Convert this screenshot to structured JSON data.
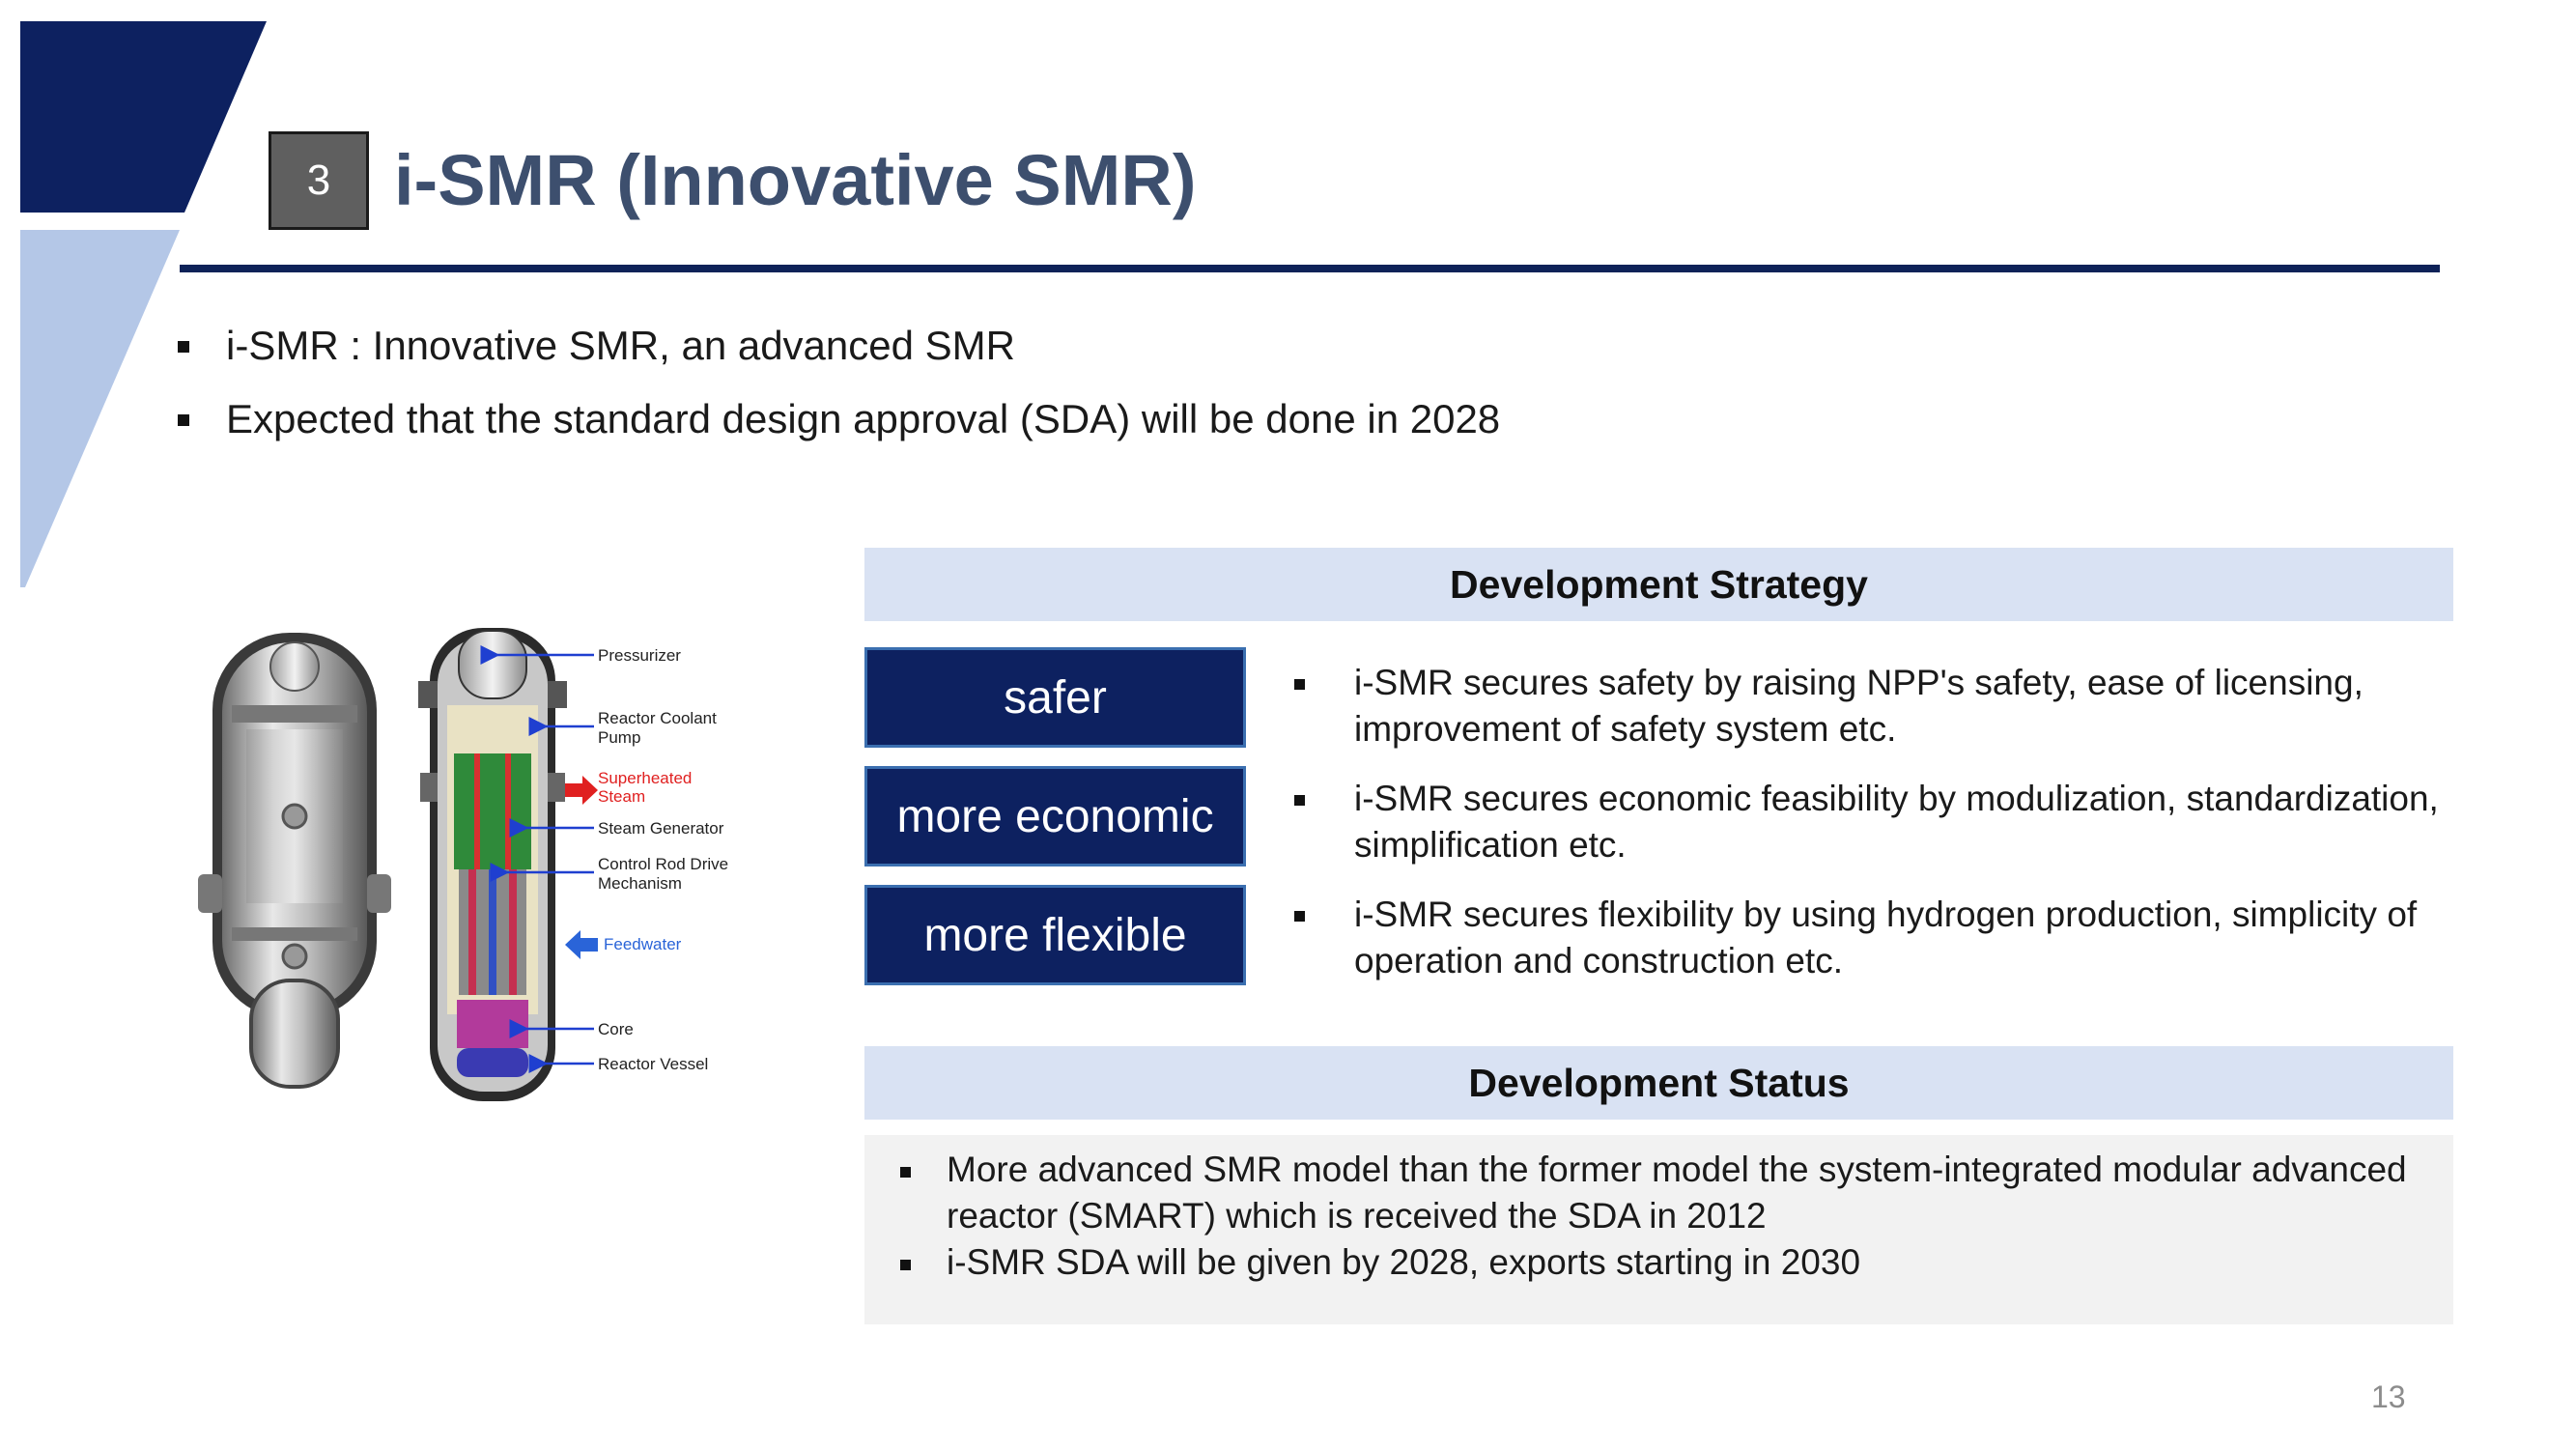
{
  "header": {
    "section_number": "3",
    "title": "i-SMR (Innovative SMR)"
  },
  "intro_bullets": [
    "i-SMR : Innovative SMR, an advanced SMR",
    "Expected that the standard design approval (SDA) will be done in 2028"
  ],
  "diagram": {
    "labels": {
      "pressurizer": "Pressurizer",
      "rcp_line1": "Reactor Coolant",
      "rcp_line2": "Pump",
      "steam_line1": "Superheated",
      "steam_line2": "Steam",
      "steam_generator": "Steam Generator",
      "crdm_line1": "Control Rod Drive",
      "crdm_line2": "Mechanism",
      "feedwater": "Feedwater",
      "core": "Core",
      "reactor_vessel": "Reactor Vessel"
    }
  },
  "strategy": {
    "heading": "Development Strategy",
    "items": [
      {
        "label": "safer",
        "description": "i-SMR secures safety by raising NPP's safety, ease of licensing, improvement of safety system etc."
      },
      {
        "label": "more economic",
        "description": "i-SMR secures economic feasibility by modulization, standardization, simplification etc."
      },
      {
        "label": "more flexible",
        "description": "i-SMR secures flexibility by using hydrogen production, simplicity of operation and construction etc."
      }
    ]
  },
  "status": {
    "heading": "Development Status",
    "items": [
      "More advanced SMR model than the former model the system-integrated modular advanced reactor (SMART) which is received the SDA in 2012",
      "i-SMR SDA will be given by 2028, exports starting in 2030"
    ]
  },
  "page_number": "13",
  "colors": {
    "navy": "#0d2160",
    "light_blue": "#b4c7e7",
    "header_band": "#d9e2f3",
    "title_text": "#3d4f6e"
  }
}
